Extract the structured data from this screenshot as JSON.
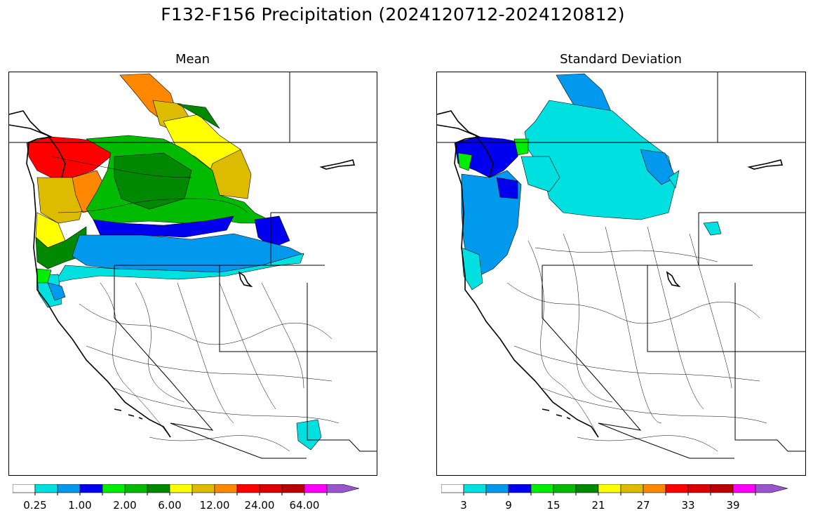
{
  "title": "F132-F156 Precipitation (2024120712-2024120812)",
  "panels": [
    {
      "title": "Mean",
      "colorbar": {
        "colors": [
          "#ffffff",
          "#00e0e0",
          "#0099ee",
          "#0000ee",
          "#00ee00",
          "#00bb00",
          "#008800",
          "#ffff00",
          "#ddbb00",
          "#ff8800",
          "#ff0000",
          "#dd0000",
          "#bb0000",
          "#ff00ff",
          "#9955cc"
        ],
        "tick_labels": [
          "0.25",
          "1.00",
          "2.00",
          "6.00",
          "12.00",
          "24.00",
          "64.00"
        ]
      }
    },
    {
      "title": "Standard Deviation",
      "colorbar": {
        "colors": [
          "#ffffff",
          "#00e0e0",
          "#0099ee",
          "#0000ee",
          "#00ee00",
          "#00bb00",
          "#008800",
          "#ffff00",
          "#ddbb00",
          "#ff8800",
          "#ff0000",
          "#dd0000",
          "#bb0000",
          "#ff00ff",
          "#9955cc"
        ],
        "tick_labels": [
          "3",
          "9",
          "15",
          "21",
          "27",
          "33",
          "39"
        ]
      }
    }
  ]
}
